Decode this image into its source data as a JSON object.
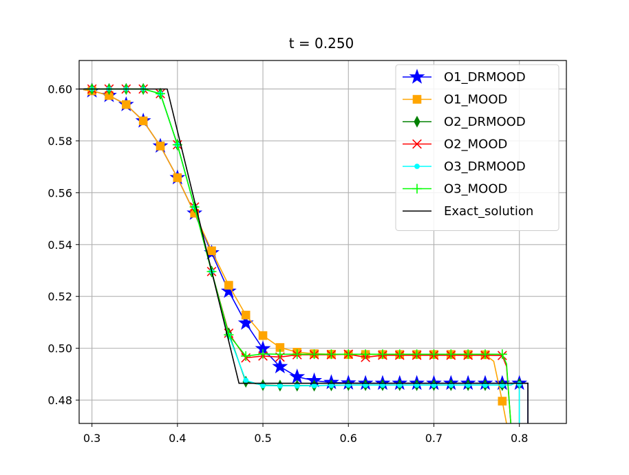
{
  "chart_data": {
    "type": "line",
    "title": "t = 0.250",
    "xlabel": "",
    "ylabel": "",
    "xlim": [
      0.285,
      0.855
    ],
    "ylim": [
      0.471,
      0.611
    ],
    "xticks": [
      0.3,
      0.4,
      0.5,
      0.6,
      0.7,
      0.8
    ],
    "xtick_labels": [
      "0.3",
      "0.4",
      "0.5",
      "0.6",
      "0.7",
      "0.8"
    ],
    "yticks": [
      0.48,
      0.5,
      0.52,
      0.54,
      0.56,
      0.58,
      0.6
    ],
    "ytick_labels": [
      "0.48",
      "0.50",
      "0.52",
      "0.54",
      "0.56",
      "0.58",
      "0.60"
    ],
    "grid": true,
    "legend_position": "upper right",
    "series": [
      {
        "name": "O1_DRMOOD",
        "color": "#0000ff",
        "marker": "star",
        "x": [
          0.29,
          0.3,
          0.32,
          0.34,
          0.36,
          0.38,
          0.4,
          0.42,
          0.44,
          0.46,
          0.48,
          0.5,
          0.52,
          0.54,
          0.56,
          0.58,
          0.6,
          0.62,
          0.64,
          0.66,
          0.68,
          0.7,
          0.72,
          0.74,
          0.76,
          0.78,
          0.8,
          0.81,
          0.81
        ],
        "y": [
          0.5997,
          0.5993,
          0.5975,
          0.594,
          0.5877,
          0.578,
          0.5658,
          0.5521,
          0.5368,
          0.522,
          0.5097,
          0.4998,
          0.4929,
          0.489,
          0.4875,
          0.4868,
          0.4866,
          0.4865,
          0.4865,
          0.4865,
          0.4865,
          0.4865,
          0.4865,
          0.4865,
          0.4865,
          0.4865,
          0.4865,
          0.4865,
          0.471
        ],
        "marked": [
          false,
          true,
          true,
          true,
          true,
          true,
          true,
          true,
          true,
          true,
          true,
          true,
          true,
          true,
          true,
          true,
          true,
          true,
          true,
          true,
          true,
          true,
          true,
          true,
          true,
          true,
          true,
          false,
          false
        ]
      },
      {
        "name": "O1_MOOD",
        "color": "#ffa500",
        "marker": "square",
        "x": [
          0.29,
          0.3,
          0.32,
          0.34,
          0.36,
          0.38,
          0.4,
          0.42,
          0.44,
          0.46,
          0.48,
          0.5,
          0.52,
          0.54,
          0.56,
          0.58,
          0.6,
          0.62,
          0.64,
          0.66,
          0.68,
          0.7,
          0.72,
          0.74,
          0.76,
          0.77,
          0.78,
          0.785
        ],
        "y": [
          0.5997,
          0.5993,
          0.5975,
          0.594,
          0.5877,
          0.578,
          0.5658,
          0.5521,
          0.5376,
          0.5243,
          0.5128,
          0.5049,
          0.5003,
          0.4985,
          0.4979,
          0.4977,
          0.4976,
          0.4976,
          0.4976,
          0.4976,
          0.4976,
          0.4976,
          0.4976,
          0.4976,
          0.4975,
          0.495,
          0.4796,
          0.471
        ],
        "marked": [
          false,
          true,
          true,
          true,
          true,
          true,
          true,
          true,
          true,
          true,
          true,
          true,
          true,
          true,
          true,
          true,
          true,
          true,
          true,
          true,
          true,
          true,
          true,
          true,
          true,
          false,
          true,
          false
        ]
      },
      {
        "name": "O2_DRMOOD",
        "color": "#008000",
        "marker": "thin_diamond",
        "x": [
          0.29,
          0.3,
          0.32,
          0.34,
          0.36,
          0.38,
          0.4,
          0.42,
          0.44,
          0.46,
          0.48,
          0.5,
          0.52,
          0.54,
          0.56,
          0.58,
          0.6,
          0.62,
          0.64,
          0.66,
          0.68,
          0.7,
          0.72,
          0.74,
          0.76,
          0.78,
          0.79,
          0.795,
          0.8,
          0.8
        ],
        "y": [
          0.6,
          0.6,
          0.6,
          0.6,
          0.6,
          0.5982,
          0.5785,
          0.5545,
          0.5296,
          0.5058,
          0.4871,
          0.4858,
          0.4856,
          0.4856,
          0.4856,
          0.4857,
          0.4858,
          0.4858,
          0.4858,
          0.4858,
          0.4858,
          0.4858,
          0.4858,
          0.4858,
          0.4858,
          0.4858,
          0.4858,
          0.4866,
          0.4862,
          0.471
        ],
        "marked": [
          false,
          true,
          true,
          true,
          true,
          true,
          true,
          true,
          true,
          true,
          true,
          true,
          true,
          true,
          true,
          true,
          true,
          true,
          true,
          true,
          true,
          true,
          true,
          true,
          true,
          true,
          false,
          false,
          true,
          false
        ]
      },
      {
        "name": "O2_MOOD",
        "color": "#ff0000",
        "marker": "x",
        "x": [
          0.29,
          0.3,
          0.32,
          0.34,
          0.36,
          0.38,
          0.4,
          0.42,
          0.44,
          0.46,
          0.48,
          0.5,
          0.52,
          0.54,
          0.56,
          0.58,
          0.6,
          0.62,
          0.64,
          0.66,
          0.68,
          0.7,
          0.72,
          0.74,
          0.76,
          0.78,
          0.785,
          0.79
        ],
        "y": [
          0.6,
          0.6,
          0.6,
          0.6,
          0.6,
          0.5982,
          0.5785,
          0.5545,
          0.5296,
          0.5058,
          0.4963,
          0.497,
          0.4966,
          0.4975,
          0.4975,
          0.4975,
          0.4977,
          0.4965,
          0.4973,
          0.4973,
          0.4973,
          0.4973,
          0.4973,
          0.4973,
          0.4973,
          0.4972,
          0.493,
          0.471
        ],
        "marked": [
          false,
          true,
          true,
          true,
          true,
          true,
          true,
          true,
          true,
          true,
          true,
          true,
          true,
          true,
          true,
          true,
          true,
          true,
          true,
          true,
          true,
          true,
          true,
          true,
          true,
          true,
          false,
          false
        ]
      },
      {
        "name": "O3_DRMOOD",
        "color": "#00ffff",
        "marker": "point",
        "x": [
          0.29,
          0.3,
          0.32,
          0.34,
          0.36,
          0.38,
          0.4,
          0.42,
          0.44,
          0.46,
          0.48,
          0.5,
          0.52,
          0.54,
          0.56,
          0.58,
          0.6,
          0.62,
          0.64,
          0.66,
          0.68,
          0.7,
          0.72,
          0.74,
          0.76,
          0.78,
          0.79,
          0.795,
          0.8,
          0.8
        ],
        "y": [
          0.6,
          0.6,
          0.6,
          0.6,
          0.6,
          0.5982,
          0.5785,
          0.5545,
          0.5296,
          0.505,
          0.4876,
          0.4856,
          0.4855,
          0.4855,
          0.4856,
          0.4857,
          0.4858,
          0.4858,
          0.4858,
          0.4858,
          0.4858,
          0.4858,
          0.4858,
          0.4858,
          0.4858,
          0.4858,
          0.4858,
          0.4866,
          0.4862,
          0.471
        ],
        "marked": [
          false,
          true,
          true,
          true,
          true,
          true,
          true,
          true,
          true,
          true,
          true,
          true,
          true,
          true,
          true,
          true,
          true,
          true,
          true,
          true,
          true,
          true,
          true,
          true,
          true,
          true,
          false,
          false,
          true,
          false
        ]
      },
      {
        "name": "O3_MOOD",
        "color": "#00ff00",
        "marker": "plus",
        "x": [
          0.29,
          0.3,
          0.32,
          0.34,
          0.36,
          0.38,
          0.4,
          0.42,
          0.44,
          0.46,
          0.48,
          0.5,
          0.52,
          0.54,
          0.56,
          0.58,
          0.6,
          0.62,
          0.64,
          0.66,
          0.68,
          0.7,
          0.72,
          0.74,
          0.76,
          0.78,
          0.785,
          0.79
        ],
        "y": [
          0.6,
          0.6,
          0.6,
          0.6,
          0.6,
          0.5982,
          0.5785,
          0.5545,
          0.5296,
          0.5052,
          0.497,
          0.4978,
          0.4977,
          0.4977,
          0.4977,
          0.4977,
          0.4977,
          0.4977,
          0.4977,
          0.4977,
          0.4977,
          0.4977,
          0.4977,
          0.4977,
          0.4977,
          0.4977,
          0.494,
          0.471
        ],
        "marked": [
          false,
          true,
          true,
          true,
          true,
          true,
          true,
          true,
          true,
          true,
          true,
          true,
          true,
          true,
          true,
          true,
          true,
          true,
          true,
          true,
          true,
          true,
          true,
          true,
          true,
          true,
          false,
          false
        ]
      },
      {
        "name": "Exact_solution",
        "color": "#000000",
        "marker": "none",
        "x": [
          0.285,
          0.388,
          0.472,
          0.81,
          0.81
        ],
        "y": [
          0.6,
          0.6,
          0.4865,
          0.4865,
          0.471
        ],
        "marked": [
          false,
          false,
          false,
          false,
          false
        ]
      }
    ]
  }
}
